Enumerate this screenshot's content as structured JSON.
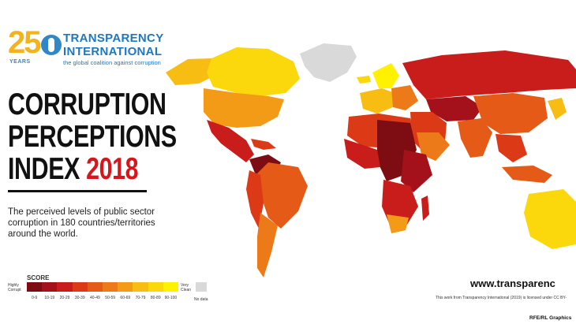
{
  "logo": {
    "number": "25",
    "years": "YEARS",
    "line1": "TRANSPARENCY",
    "line2": "INTERNATIONAL",
    "tagline": "the global coalition against corruption"
  },
  "title": {
    "line1": "CORRUPTION",
    "line2": "PERCEPTIONS",
    "line3_word": "INDEX",
    "year": "2018"
  },
  "subtitle": "The perceived levels of public sector corruption in 180 countries/territories around the world.",
  "legend": {
    "label": "SCORE",
    "low_end": "Highly Corrupt",
    "high_end": "Very Clean",
    "bins": [
      "0-9",
      "10-19",
      "20-29",
      "30-39",
      "40-49",
      "50-59",
      "60-69",
      "70-79",
      "80-89",
      "90-100"
    ],
    "colors": [
      "#7d0d12",
      "#a5111a",
      "#c81d1b",
      "#dc3a16",
      "#e55a17",
      "#ec7a18",
      "#f39a16",
      "#f7bd13",
      "#fbd80c",
      "#fff200"
    ],
    "no_data": "No data",
    "no_data_color": "#d9d9d9"
  },
  "footer": {
    "site": "www.transparenc",
    "license": "This work from Transparency International (2019) is licensed under CC BY-",
    "credit": "RFE/RL Graphics"
  }
}
